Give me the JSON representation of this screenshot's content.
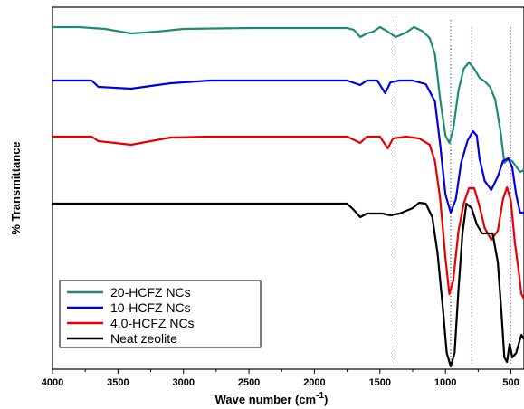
{
  "chart_data": {
    "type": "line",
    "xlabel": "Wave number (cm",
    "xlabel_sup": "-1",
    "xlabel_end": ")",
    "ylabel": "% Transmittance",
    "xlim": [
      4000,
      400
    ],
    "x_reversed": true,
    "x_ticks": [
      4000,
      3500,
      3000,
      2500,
      2000,
      1500,
      1000,
      500
    ],
    "y_ticks_shown": false,
    "grid": false,
    "legend_position": "bottom-left",
    "reference_lines_cm": [
      1385,
      960,
      800,
      500
    ],
    "series": [
      {
        "name": "20-HCFZ NCs",
        "color": "#1e8a78",
        "points": [
          [
            4000,
            30
          ],
          [
            3800,
            30
          ],
          [
            3600,
            32
          ],
          [
            3400,
            37
          ],
          [
            3200,
            35
          ],
          [
            3000,
            32
          ],
          [
            2500,
            31
          ],
          [
            2000,
            31
          ],
          [
            1750,
            31
          ],
          [
            1700,
            33
          ],
          [
            1650,
            41
          ],
          [
            1600,
            37
          ],
          [
            1550,
            35
          ],
          [
            1500,
            30
          ],
          [
            1450,
            34
          ],
          [
            1380,
            41
          ],
          [
            1300,
            36
          ],
          [
            1240,
            30
          ],
          [
            1180,
            34
          ],
          [
            1120,
            42
          ],
          [
            1080,
            60
          ],
          [
            1040,
            110
          ],
          [
            1000,
            150
          ],
          [
            970,
            158
          ],
          [
            940,
            143
          ],
          [
            900,
            100
          ],
          [
            860,
            76
          ],
          [
            820,
            69
          ],
          [
            780,
            76
          ],
          [
            740,
            86
          ],
          [
            700,
            90
          ],
          [
            660,
            96
          ],
          [
            620,
            110
          ],
          [
            580,
            145
          ],
          [
            550,
            180
          ],
          [
            520,
            176
          ],
          [
            490,
            178
          ],
          [
            460,
            184
          ],
          [
            430,
            190
          ],
          [
            400,
            188
          ]
        ]
      },
      {
        "name": "10-HCFZ NCs",
        "color": "#0000e6",
        "points": [
          [
            4000,
            89
          ],
          [
            3700,
            89
          ],
          [
            3650,
            96
          ],
          [
            3400,
            98
          ],
          [
            3100,
            92
          ],
          [
            2800,
            89
          ],
          [
            2000,
            89
          ],
          [
            1750,
            89
          ],
          [
            1650,
            94
          ],
          [
            1600,
            89
          ],
          [
            1520,
            89
          ],
          [
            1460,
            103
          ],
          [
            1420,
            91
          ],
          [
            1350,
            89
          ],
          [
            1250,
            89
          ],
          [
            1150,
            93
          ],
          [
            1080,
            112
          ],
          [
            1040,
            160
          ],
          [
            1000,
            215
          ],
          [
            960,
            235
          ],
          [
            920,
            220
          ],
          [
            880,
            180
          ],
          [
            830,
            155
          ],
          [
            790,
            145
          ],
          [
            760,
            150
          ],
          [
            740,
            175
          ],
          [
            700,
            200
          ],
          [
            650,
            210
          ],
          [
            600,
            195
          ],
          [
            560,
            178
          ],
          [
            520,
            175
          ],
          [
            490,
            185
          ],
          [
            460,
            215
          ],
          [
            430,
            235
          ],
          [
            400,
            235
          ]
        ]
      },
      {
        "name": "4.0-HCFZ NCs",
        "color": "#e60000",
        "points": [
          [
            4000,
            151
          ],
          [
            3700,
            151
          ],
          [
            3650,
            156
          ],
          [
            3400,
            160
          ],
          [
            3100,
            152
          ],
          [
            2800,
            151
          ],
          [
            2000,
            151
          ],
          [
            1750,
            151
          ],
          [
            1650,
            158
          ],
          [
            1600,
            151
          ],
          [
            1500,
            151
          ],
          [
            1440,
            164
          ],
          [
            1400,
            153
          ],
          [
            1300,
            151
          ],
          [
            1200,
            153
          ],
          [
            1120,
            160
          ],
          [
            1080,
            178
          ],
          [
            1040,
            220
          ],
          [
            1000,
            285
          ],
          [
            970,
            325
          ],
          [
            940,
            310
          ],
          [
            900,
            255
          ],
          [
            860,
            225
          ],
          [
            820,
            208
          ],
          [
            780,
            208
          ],
          [
            740,
            228
          ],
          [
            700,
            252
          ],
          [
            650,
            265
          ],
          [
            600,
            255
          ],
          [
            560,
            220
          ],
          [
            530,
            207
          ],
          [
            500,
            222
          ],
          [
            470,
            268
          ],
          [
            440,
            300
          ],
          [
            420,
            325
          ],
          [
            400,
            330
          ]
        ]
      },
      {
        "name": "Neat zeolite",
        "color": "#000000",
        "points": [
          [
            4000,
            225
          ],
          [
            3500,
            225
          ],
          [
            3100,
            225
          ],
          [
            2500,
            225
          ],
          [
            2000,
            225
          ],
          [
            1750,
            225
          ],
          [
            1700,
            232
          ],
          [
            1650,
            240
          ],
          [
            1600,
            236
          ],
          [
            1550,
            236
          ],
          [
            1480,
            236
          ],
          [
            1420,
            238
          ],
          [
            1350,
            236
          ],
          [
            1300,
            233
          ],
          [
            1250,
            230
          ],
          [
            1200,
            224
          ],
          [
            1150,
            225
          ],
          [
            1100,
            240
          ],
          [
            1060,
            280
          ],
          [
            1020,
            340
          ],
          [
            990,
            390
          ],
          [
            960,
            405
          ],
          [
            930,
            390
          ],
          [
            900,
            320
          ],
          [
            870,
            258
          ],
          [
            840,
            225
          ],
          [
            800,
            230
          ],
          [
            760,
            248
          ],
          [
            720,
            258
          ],
          [
            680,
            258
          ],
          [
            640,
            258
          ],
          [
            600,
            290
          ],
          [
            570,
            350
          ],
          [
            550,
            395
          ],
          [
            530,
            400
          ],
          [
            510,
            380
          ],
          [
            490,
            395
          ],
          [
            460,
            390
          ],
          [
            440,
            380
          ],
          [
            420,
            370
          ],
          [
            400,
            375
          ]
        ]
      }
    ]
  }
}
